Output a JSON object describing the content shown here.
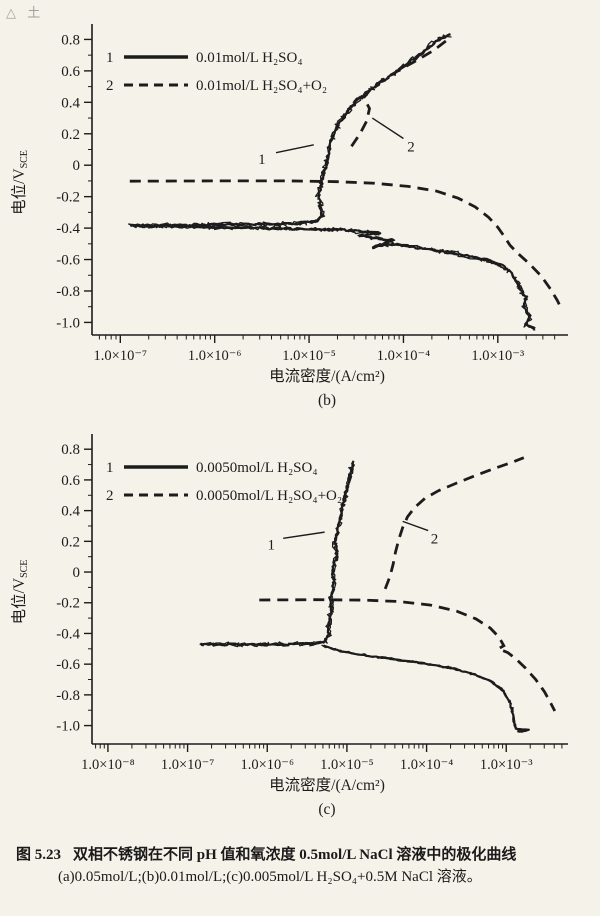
{
  "page": {
    "bg": "#f5f2ea",
    "ink": "#1c1c1c",
    "artifact": "△ 土"
  },
  "caption": {
    "number": "图 5.23",
    "line1": "双相不锈钢在不同 pH 值和氧浓度 0.5mol/L NaCl 溶液中的极化曲线",
    "line2": "(a)0.05mol/L;(b)0.01mol/L;(c)0.005mol/L H₂SO₄+0.5M NaCl 溶液。"
  },
  "chart_data": [
    {
      "id": "chart-b",
      "type": "line",
      "panel_label": "(b)",
      "xlabel": "电流密度/(A/cm²)",
      "ylabel_main": "电位/V",
      "ylabel_sub": "SCE",
      "xscale": "log10",
      "xlim_log": [
        -7.3,
        -2.32
      ],
      "ylim": [
        -1.08,
        0.86
      ],
      "x_ticks": [
        {
          "log": -7,
          "label": "1.0×10⁻⁷"
        },
        {
          "log": -6,
          "label": "1.0×10⁻⁶"
        },
        {
          "log": -5,
          "label": "1.0×10⁻⁵"
        },
        {
          "log": -4,
          "label": "1.0×10⁻⁴"
        },
        {
          "log": -3,
          "label": "1.0×10⁻³"
        }
      ],
      "y_ticks": [
        0.8,
        0.6,
        0.4,
        0.2,
        0,
        -0.2,
        -0.4,
        -0.6,
        -0.8,
        -1.0
      ],
      "y_tick_labels": [
        "0.8",
        "0.6",
        "0.4",
        "0.2",
        "0",
        "-0.2",
        "-0.4",
        "-0.6",
        "-0.8",
        "-1.0"
      ],
      "legend": [
        {
          "num": "1",
          "style": "solid",
          "label": "0.01mol/L H₂SO₄"
        },
        {
          "num": "2",
          "style": "dashed",
          "label": "0.01mol/L H₂SO₄+O₂"
        }
      ],
      "annotations": [
        {
          "text": "1",
          "tx": -5.5,
          "ty": 0.04,
          "line": [
            -5.35,
            0.08,
            -4.95,
            0.13
          ]
        },
        {
          "text": "2",
          "tx": -3.92,
          "ty": 0.12,
          "line": [
            -4.0,
            0.17,
            -4.33,
            0.3
          ]
        }
      ],
      "series": [
        {
          "name": "0.01mol/L H₂SO₄",
          "style": "solid",
          "noise": 3,
          "points": [
            [
              -2.6,
              -1.04
            ],
            [
              -2.7,
              -1.02
            ],
            [
              -2.66,
              -0.96
            ],
            [
              -2.73,
              -0.9
            ],
            [
              -2.7,
              -0.84
            ],
            [
              -2.77,
              -0.78
            ],
            [
              -2.82,
              -0.72
            ],
            [
              -2.88,
              -0.67
            ],
            [
              -2.98,
              -0.63
            ],
            [
              -3.15,
              -0.6
            ],
            [
              -3.45,
              -0.56
            ],
            [
              -3.8,
              -0.53
            ],
            [
              -4.1,
              -0.5
            ],
            [
              -4.32,
              -0.52
            ],
            [
              -4.12,
              -0.48
            ],
            [
              -4.45,
              -0.45
            ],
            [
              -4.25,
              -0.43
            ],
            [
              -4.7,
              -0.41
            ],
            [
              -6.88,
              -0.385
            ],
            [
              -5.1,
              -0.372
            ],
            [
              -4.92,
              -0.355
            ],
            [
              -4.86,
              -0.32
            ],
            [
              -4.88,
              -0.26
            ],
            [
              -4.9,
              -0.19
            ],
            [
              -4.87,
              -0.12
            ],
            [
              -4.84,
              -0.05
            ],
            [
              -4.81,
              0.03
            ],
            [
              -4.78,
              0.11
            ],
            [
              -4.75,
              0.18
            ],
            [
              -4.7,
              0.25
            ],
            [
              -4.63,
              0.31
            ],
            [
              -4.55,
              0.37
            ],
            [
              -4.45,
              0.43
            ],
            [
              -4.32,
              0.49
            ],
            [
              -4.16,
              0.56
            ],
            [
              -4.0,
              0.63
            ],
            [
              -3.86,
              0.69
            ],
            [
              -3.73,
              0.75
            ],
            [
              -3.62,
              0.8
            ],
            [
              -3.5,
              0.83
            ]
          ]
        },
        {
          "name": "0.01mol/L H₂SO₄+O₂ cathodic",
          "style": "dashed",
          "noise": 0,
          "points": [
            [
              -6.9,
              -0.102
            ],
            [
              -6.0,
              -0.1
            ],
            [
              -5.2,
              -0.1
            ],
            [
              -4.7,
              -0.105
            ],
            [
              -4.3,
              -0.115
            ],
            [
              -3.95,
              -0.135
            ],
            [
              -3.65,
              -0.165
            ],
            [
              -3.42,
              -0.21
            ],
            [
              -3.24,
              -0.265
            ],
            [
              -3.1,
              -0.33
            ],
            [
              -3.0,
              -0.395
            ],
            [
              -2.93,
              -0.455
            ],
            [
              -2.87,
              -0.51
            ],
            [
              -2.78,
              -0.565
            ],
            [
              -2.66,
              -0.63
            ],
            [
              -2.54,
              -0.705
            ],
            [
              -2.44,
              -0.79
            ],
            [
              -2.37,
              -0.86
            ],
            [
              -2.33,
              -0.91
            ]
          ]
        },
        {
          "name": "0.01mol/L H₂SO₄+O₂ anodic",
          "style": "dashed",
          "noise": 0,
          "points": [
            [
              -4.55,
              0.12
            ],
            [
              -4.46,
              0.2
            ],
            [
              -4.39,
              0.28
            ],
            [
              -4.36,
              0.36
            ],
            [
              -4.42,
              0.43
            ],
            [
              -4.34,
              0.49
            ],
            [
              -4.2,
              0.55
            ],
            [
              -4.03,
              0.61
            ],
            [
              -3.85,
              0.67
            ],
            [
              -3.68,
              0.73
            ],
            [
              -3.55,
              0.79
            ]
          ]
        }
      ]
    },
    {
      "id": "chart-c",
      "type": "line",
      "panel_label": "(c)",
      "xlabel": "电流密度/(A/cm²)",
      "ylabel_main": "电位/V",
      "ylabel_sub": "SCE",
      "xscale": "log10",
      "xlim_log": [
        -8.2,
        -2.3
      ],
      "ylim": [
        -1.12,
        0.86
      ],
      "x_ticks": [
        {
          "log": -8,
          "label": "1.0×10⁻⁸"
        },
        {
          "log": -7,
          "label": "1.0×10⁻⁷"
        },
        {
          "log": -6,
          "label": "1.0×10⁻⁶"
        },
        {
          "log": -5,
          "label": "1.0×10⁻⁵"
        },
        {
          "log": -4,
          "label": "1.0×10⁻⁴"
        },
        {
          "log": -3,
          "label": "1.0×10⁻³"
        }
      ],
      "y_ticks": [
        0.8,
        0.6,
        0.4,
        0.2,
        0,
        -0.2,
        -0.4,
        -0.6,
        -0.8,
        -1.0
      ],
      "y_tick_labels": [
        "0.8",
        "0.6",
        "0.4",
        "0.2",
        "0",
        "-0.2",
        "-0.4",
        "-0.6",
        "-0.8",
        "-1.0"
      ],
      "legend": [
        {
          "num": "1",
          "style": "solid",
          "label": "0.0050mol/L H₂SO₄"
        },
        {
          "num": "2",
          "style": "dashed",
          "label": "0.0050mol/L H₂SO₄+O₂"
        }
      ],
      "annotations": [
        {
          "text": "1",
          "tx": -5.95,
          "ty": 0.18,
          "line": [
            -5.8,
            0.22,
            -5.28,
            0.26
          ]
        },
        {
          "text": "2",
          "tx": -3.9,
          "ty": 0.22,
          "line": [
            -3.98,
            0.27,
            -4.3,
            0.33
          ]
        }
      ],
      "series": [
        {
          "name": "0.0050mol/L H₂SO₄ anodic",
          "style": "solid",
          "noise": 3,
          "points": [
            [
              -6.85,
              -0.472
            ],
            [
              -6.0,
              -0.47
            ],
            [
              -5.45,
              -0.468
            ],
            [
              -5.28,
              -0.455
            ],
            [
              -5.22,
              -0.41
            ],
            [
              -5.24,
              -0.35
            ],
            [
              -5.21,
              -0.29
            ],
            [
              -5.19,
              -0.23
            ],
            [
              -5.21,
              -0.17
            ],
            [
              -5.18,
              -0.11
            ],
            [
              -5.16,
              -0.05
            ],
            [
              -5.18,
              0.01
            ],
            [
              -5.15,
              0.07
            ],
            [
              -5.13,
              0.13
            ],
            [
              -5.15,
              0.19
            ],
            [
              -5.12,
              0.25
            ],
            [
              -5.1,
              0.31
            ],
            [
              -5.07,
              0.37
            ],
            [
              -5.05,
              0.43
            ],
            [
              -5.02,
              0.49
            ],
            [
              -4.99,
              0.55
            ],
            [
              -4.97,
              0.61
            ],
            [
              -4.94,
              0.67
            ],
            [
              -4.92,
              0.72
            ]
          ]
        },
        {
          "name": "0.0050mol/L H₂SO₄ cathodic",
          "style": "solid",
          "noise": 1.6,
          "points": [
            [
              -5.3,
              -0.48
            ],
            [
              -5.05,
              -0.52
            ],
            [
              -4.6,
              -0.555
            ],
            [
              -4.1,
              -0.59
            ],
            [
              -3.7,
              -0.625
            ],
            [
              -3.4,
              -0.665
            ],
            [
              -3.18,
              -0.715
            ],
            [
              -3.04,
              -0.775
            ],
            [
              -2.96,
              -0.84
            ],
            [
              -2.92,
              -0.91
            ],
            [
              -2.9,
              -0.975
            ],
            [
              -2.88,
              -1.02
            ],
            [
              -2.72,
              -1.03
            ],
            [
              -2.86,
              -1.04
            ]
          ]
        },
        {
          "name": "0.0050mol/L H₂SO₄+O₂ cathodic",
          "style": "dashed",
          "noise": 0,
          "points": [
            [
              -6.1,
              -0.182
            ],
            [
              -5.4,
              -0.18
            ],
            [
              -4.8,
              -0.183
            ],
            [
              -4.35,
              -0.192
            ],
            [
              -3.95,
              -0.215
            ],
            [
              -3.62,
              -0.255
            ],
            [
              -3.38,
              -0.305
            ],
            [
              -3.2,
              -0.365
            ],
            [
              -3.09,
              -0.425
            ],
            [
              -3.03,
              -0.48
            ],
            [
              -3.1,
              -0.5
            ],
            [
              -2.98,
              -0.525
            ],
            [
              -2.88,
              -0.565
            ],
            [
              -2.76,
              -0.625
            ],
            [
              -2.63,
              -0.7
            ],
            [
              -2.52,
              -0.78
            ],
            [
              -2.44,
              -0.855
            ],
            [
              -2.39,
              -0.905
            ]
          ]
        },
        {
          "name": "0.0050mol/L H₂SO₄+O₂ anodic",
          "style": "dashed",
          "noise": 0,
          "points": [
            [
              -4.52,
              -0.11
            ],
            [
              -4.46,
              -0.03
            ],
            [
              -4.42,
              0.05
            ],
            [
              -4.39,
              0.13
            ],
            [
              -4.35,
              0.21
            ],
            [
              -4.3,
              0.29
            ],
            [
              -4.24,
              0.36
            ],
            [
              -4.15,
              0.42
            ],
            [
              -4.02,
              0.48
            ],
            [
              -3.85,
              0.53
            ],
            [
              -3.62,
              0.58
            ],
            [
              -3.38,
              0.63
            ],
            [
              -3.12,
              0.68
            ],
            [
              -2.9,
              0.72
            ],
            [
              -2.78,
              0.745
            ]
          ]
        }
      ]
    }
  ]
}
